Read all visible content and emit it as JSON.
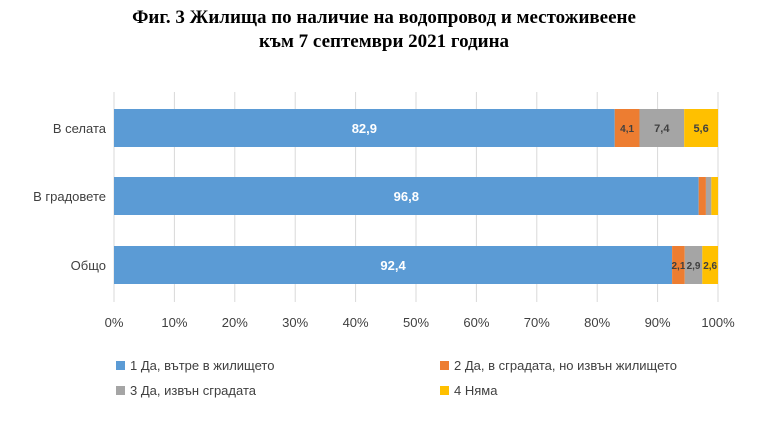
{
  "chart_data": {
    "type": "bar",
    "orientation": "horizontal",
    "stacked": "percent",
    "title_lines": [
      "Фиг. 3 Жилища по наличие на водопровод и местоживеене",
      "към 7 септември 2021 година"
    ],
    "categories": [
      "В селата",
      "В градовете",
      "Общо"
    ],
    "series": [
      {
        "name": "1 Да, вътре в жилището",
        "color": "#5b9bd5",
        "values": [
          82.9,
          96.8,
          92.4
        ],
        "labels": [
          "82,9",
          "96,8",
          "92,4"
        ]
      },
      {
        "name": "2 Да, в сградата, но извън жилището",
        "color": "#ed7d31",
        "values": [
          4.1,
          1.2,
          2.1
        ],
        "labels": [
          "4,1",
          "",
          "2,1"
        ]
      },
      {
        "name": "3 Да, извън сградата",
        "color": "#a5a5a5",
        "values": [
          7.4,
          0.9,
          2.9
        ],
        "labels": [
          "7,4",
          "",
          "2,9"
        ]
      },
      {
        "name": "4 Няма",
        "color": "#ffc000",
        "values": [
          5.6,
          1.1,
          2.6
        ],
        "labels": [
          "5,6",
          "",
          "2,6"
        ]
      }
    ],
    "xticks": [
      "0%",
      "10%",
      "20%",
      "30%",
      "40%",
      "50%",
      "60%",
      "70%",
      "80%",
      "90%",
      "100%"
    ],
    "xlim": [
      0,
      100
    ],
    "grid": true,
    "legend_position": "bottom"
  }
}
